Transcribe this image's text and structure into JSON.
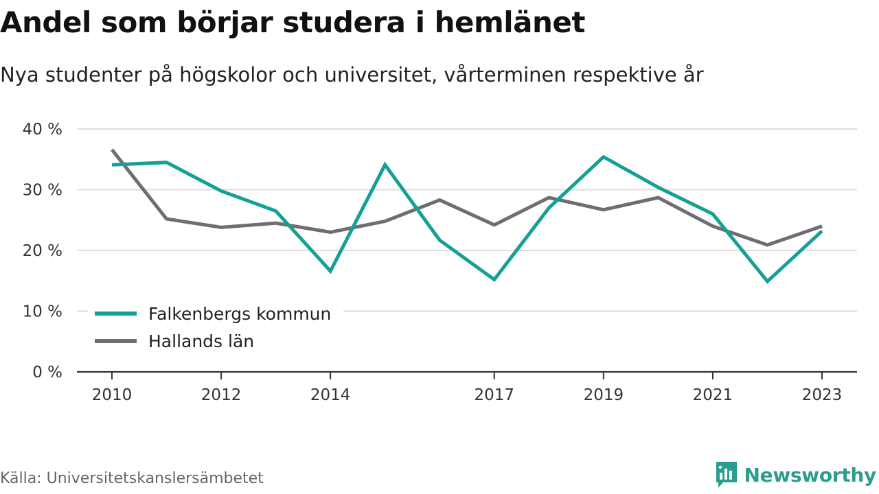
{
  "title": "Andel som börjar studera i hemlänet",
  "subtitle": "Nya studenter på högskolor och universitet, vårterminen respektive år",
  "source": "Källa: Universitetskanslersämbetet",
  "brand": {
    "name": "Newsworthy",
    "icon": "newsworthy-logo-icon",
    "color": "#2a9d8f"
  },
  "chart_data": {
    "type": "line",
    "title": "Andel som börjar studera i hemlänet",
    "subtitle": "Nya studenter på högskolor och universitet, vårterminen respektive år",
    "x": [
      2010,
      2011,
      2012,
      2013,
      2014,
      2015,
      2016,
      2017,
      2018,
      2019,
      2020,
      2021,
      2022,
      2023
    ],
    "x_tick_values": [
      2010,
      2012,
      2014,
      2017,
      2019,
      2021,
      2023
    ],
    "x_tick_labels": [
      "2010",
      "2012",
      "2014",
      "2017",
      "2019",
      "2021",
      "2023"
    ],
    "y_ticks": [
      0,
      10,
      20,
      30,
      40
    ],
    "y_tick_labels": [
      "0 %",
      "10 %",
      "20 %",
      "30 %",
      "40 %"
    ],
    "ylim": [
      0,
      40
    ],
    "unit": "%",
    "grid": "horizontal",
    "legend_position": "bottom-left",
    "series": [
      {
        "name": "Falkenbergs kommun",
        "color": "#15a095",
        "values": [
          34.1,
          34.5,
          29.8,
          26.5,
          16.6,
          34.1,
          21.7,
          15.2,
          27.0,
          35.4,
          30.4,
          26.0,
          14.9,
          23.2
        ]
      },
      {
        "name": "Hallands län",
        "color": "#6e6d73",
        "values": [
          36.6,
          25.2,
          23.8,
          24.5,
          23.0,
          24.8,
          28.3,
          24.2,
          28.7,
          26.7,
          28.7,
          24.0,
          20.9,
          24.0
        ]
      }
    ]
  }
}
